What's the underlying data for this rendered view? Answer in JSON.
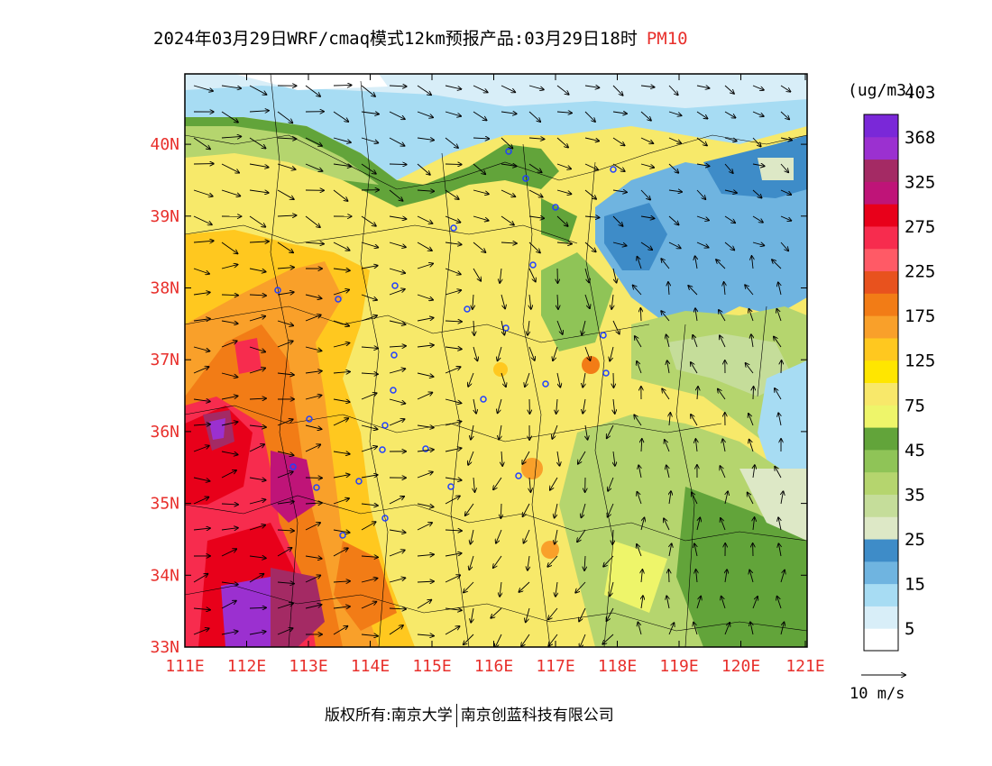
{
  "title": {
    "main": "2024年03月29日WRF/cmaq模式12km预报产品:03月29日18时",
    "pollutant": "PM10"
  },
  "axes": {
    "lon_labels": [
      "111E",
      "112E",
      "113E",
      "114E",
      "115E",
      "116E",
      "117E",
      "118E",
      "119E",
      "120E",
      "121E"
    ],
    "lat_labels": [
      "33N",
      "34N",
      "35N",
      "36N",
      "37N",
      "38N",
      "39N",
      "40N"
    ]
  },
  "colorbar": {
    "unit": "(ug/m3)",
    "colors": [
      "#ffffff",
      "#d8eef8",
      "#a7dcf3",
      "#6fb4e0",
      "#3e8cc8",
      "#dde8c6",
      "#c5dd9a",
      "#b5d56e",
      "#8fc457",
      "#62a43a",
      "#eef56a",
      "#f8e86a",
      "#ffe600",
      "#ffc81f",
      "#f9a02a",
      "#f27c16",
      "#e8521e",
      "#ff5a66",
      "#f72c4e",
      "#e8001a",
      "#bf1478",
      "#a42a64",
      "#9b30d0",
      "#7a28d8"
    ],
    "tick_labels": [
      "5",
      "15",
      "25",
      "35",
      "45",
      "75",
      "125",
      "175",
      "225",
      "275",
      "325",
      "368",
      "403"
    ]
  },
  "wind_scale": {
    "label": "10 m/s"
  },
  "footer": {
    "copyright": "版权所有:南京大学",
    "company": "南京创蓝科技有限公司"
  }
}
